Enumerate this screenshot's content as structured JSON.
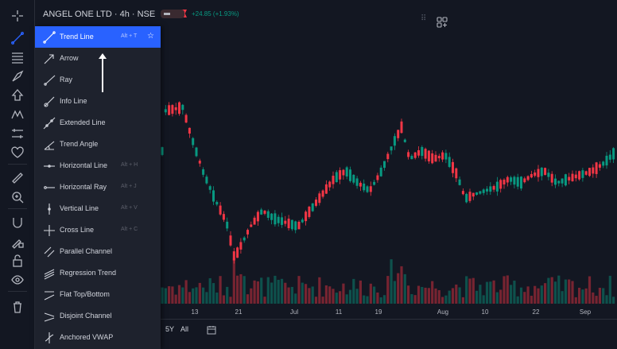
{
  "header": {
    "symbol": "ANGEL ONE LTD · 4h · NSE",
    "change": "+24.85 (+1.93%)",
    "colors": {
      "up": "#089981",
      "down": "#f23645",
      "accent": "#2962ff"
    }
  },
  "toolbar": {
    "icons": [
      "crosshair-icon",
      "trend-line-icon",
      "fib-icon",
      "brush-icon",
      "shapes-icon",
      "pattern-icon",
      "prediction-icon",
      "heart-icon",
      "ruler-icon",
      "zoom-in-icon",
      "magnet-icon",
      "lock-drawing-icon",
      "lock-icon",
      "eye-icon",
      "trash-icon"
    ]
  },
  "menu": {
    "items": [
      {
        "label": "Trend Line",
        "key": "Alt + T",
        "icon": "trend-line-icon"
      },
      {
        "label": "Arrow",
        "key": "",
        "icon": "arrow-icon"
      },
      {
        "label": "Ray",
        "key": "",
        "icon": "ray-icon"
      },
      {
        "label": "Info Line",
        "key": "",
        "icon": "info-line-icon"
      },
      {
        "label": "Extended Line",
        "key": "",
        "icon": "extended-line-icon"
      },
      {
        "label": "Trend Angle",
        "key": "",
        "icon": "trend-angle-icon"
      },
      {
        "label": "Horizontal Line",
        "key": "Alt + H",
        "icon": "horizontal-line-icon"
      },
      {
        "label": "Horizontal Ray",
        "key": "Alt + J",
        "icon": "horizontal-ray-icon"
      },
      {
        "label": "Vertical Line",
        "key": "Alt + V",
        "icon": "vertical-line-icon"
      },
      {
        "label": "Cross Line",
        "key": "Alt + C",
        "icon": "cross-line-icon"
      },
      {
        "label": "Parallel Channel",
        "key": "",
        "icon": "parallel-channel-icon"
      },
      {
        "label": "Regression Trend",
        "key": "",
        "icon": "regression-trend-icon"
      },
      {
        "label": "Flat Top/Bottom",
        "key": "",
        "icon": "flat-top-bottom-icon"
      },
      {
        "label": "Disjoint Channel",
        "key": "",
        "icon": "disjoint-channel-icon"
      },
      {
        "label": "Anchored VWAP",
        "key": "",
        "icon": "anchored-vwap-icon"
      }
    ]
  },
  "xaxis": {
    "ticks": [
      {
        "label": "13"
      },
      {
        "label": "21"
      },
      {
        "label": "Jul"
      },
      {
        "label": "11"
      },
      {
        "label": "19"
      },
      {
        "label": "Aug"
      },
      {
        "label": "10"
      },
      {
        "label": "22"
      },
      {
        "label": "Sep"
      }
    ]
  },
  "bottombar": {
    "range_5y": "5Y",
    "range_all": "All"
  }
}
